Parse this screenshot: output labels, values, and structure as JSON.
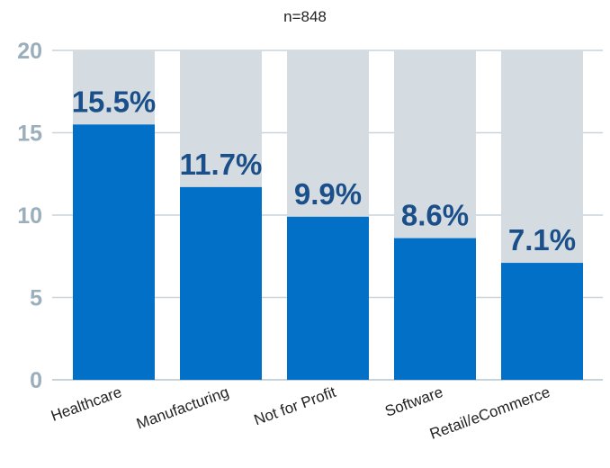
{
  "chart_data": {
    "type": "bar",
    "title": "",
    "subtitle": "n=848",
    "xlabel": "",
    "ylabel": "",
    "categories": [
      "Healthcare",
      "Manufacturing",
      "Not for Profit",
      "Software",
      "Retail/eCommerce"
    ],
    "values": [
      15.5,
      11.7,
      9.9,
      8.6,
      7.1
    ],
    "data_labels": [
      "15.5%",
      "11.7%",
      "9.9%",
      "8.6%",
      "7.1%"
    ],
    "ylim": [
      0,
      20
    ],
    "yticks": [
      0,
      5,
      10,
      15,
      20
    ],
    "grid": true,
    "legend": "none",
    "colors": {
      "bar": "#0170c6",
      "background_bar": "#d4dce1",
      "data_label": "#1b4f8a",
      "axis_tick": "#9aaebb",
      "grid": "#c9d3da"
    }
  }
}
